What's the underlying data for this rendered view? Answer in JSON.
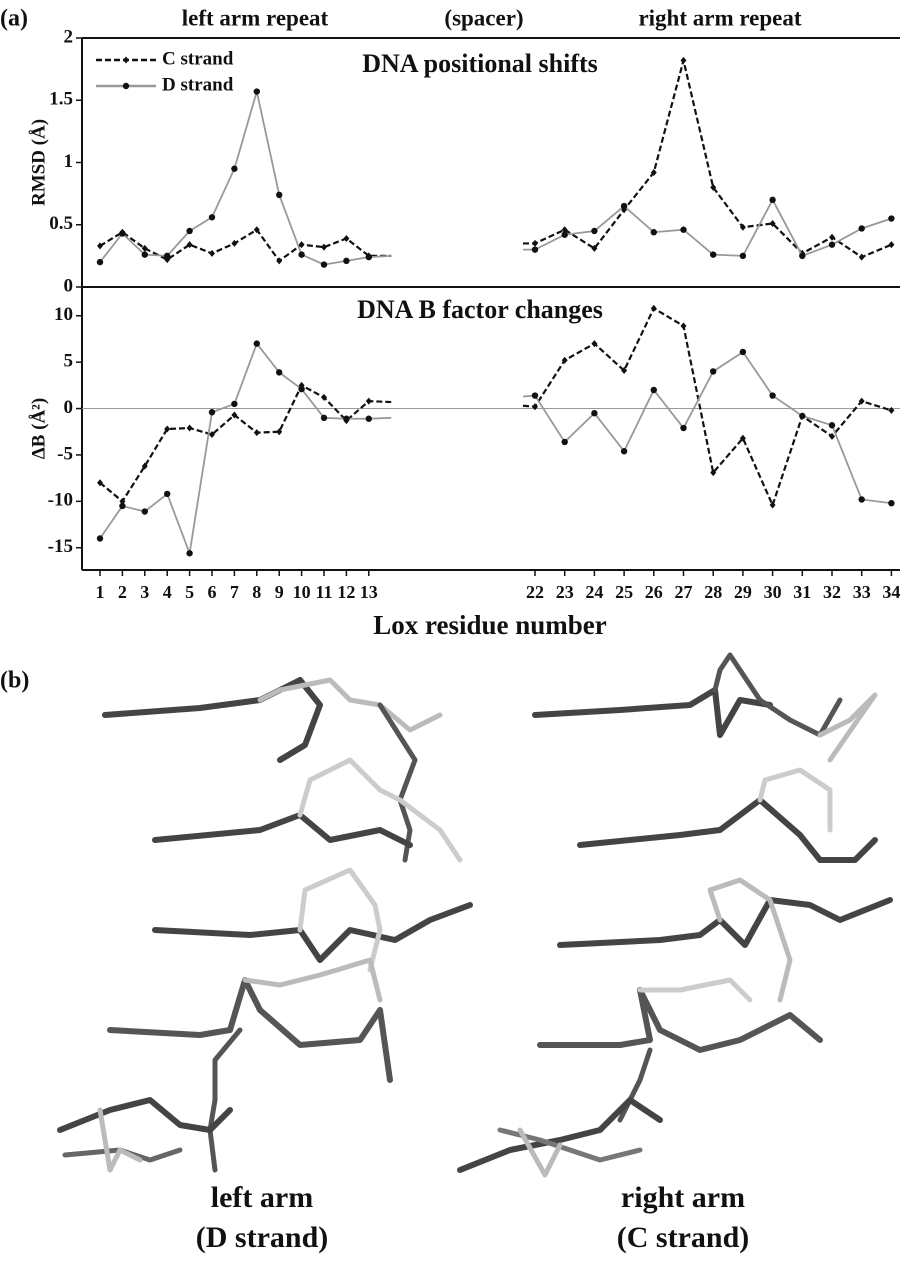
{
  "panel_a": {
    "label": "(a)",
    "region_labels": [
      "left arm repeat",
      "(spacer)",
      "right arm repeat"
    ]
  },
  "chart_data": [
    {
      "type": "line",
      "title": "DNA positional shifts",
      "y_label": "RMSD (Å)",
      "legend": "upper left",
      "ylim": [
        0,
        2
      ],
      "yticks": [
        0,
        0.5,
        1,
        1.5,
        2
      ],
      "series": [
        {
          "name": "C strand",
          "color": "#111111",
          "dash": true,
          "marker": "diamond",
          "values": [
            0.33,
            0.44,
            0.31,
            0.22,
            0.34,
            0.27,
            0.35,
            0.46,
            0.21,
            0.34,
            0.32,
            0.39,
            0.25,
            0.25,
            0.35,
            0.35,
            0.46,
            0.31,
            0.62,
            0.92,
            1.82,
            0.8,
            0.48,
            0.51,
            0.27,
            0.4,
            0.24,
            0.34
          ]
        },
        {
          "name": "D strand",
          "color": "#999999",
          "dash": false,
          "marker": "circle",
          "values": [
            0.2,
            0.43,
            0.26,
            0.25,
            0.45,
            0.56,
            0.95,
            1.57,
            0.74,
            0.26,
            0.18,
            0.21,
            0.24,
            0.25,
            0.3,
            0.3,
            0.42,
            0.45,
            0.65,
            0.44,
            0.46,
            0.26,
            0.25,
            0.7,
            0.25,
            0.34,
            0.47,
            0.55
          ]
        }
      ]
    },
    {
      "type": "line",
      "title": "DNA B factor changes",
      "y_label": "ΔB (Å²)",
      "x_label": "Lox residue number",
      "zero_line": true,
      "categories": [
        "1",
        "2",
        "3",
        "4",
        "5",
        "6",
        "7",
        "8",
        "9",
        "10",
        "11",
        "12",
        "13",
        null,
        null,
        "22",
        "23",
        "24",
        "25",
        "26",
        "27",
        "28",
        "29",
        "30",
        "31",
        "32",
        "33",
        "34"
      ],
      "ylim": [
        -17.4,
        13.1
      ],
      "yticks": [
        -15,
        -10,
        -5,
        0,
        5,
        10
      ],
      "series": [
        {
          "name": "C strand",
          "color": "#111111",
          "dash": true,
          "marker": "diamond",
          "values": [
            -8,
            -10,
            -6.2,
            -2.2,
            -2.1,
            -2.8,
            -0.7,
            -2.6,
            -2.5,
            2.5,
            1.2,
            -1.3,
            0.8,
            0.7,
            0.3,
            0.2,
            5.2,
            7,
            4.1,
            10.8,
            8.9,
            -6.9,
            -3.2,
            -10.4,
            -0.8,
            -3,
            0.8,
            -0.2
          ]
        },
        {
          "name": "D strand",
          "color": "#999999",
          "dash": false,
          "marker": "circle",
          "values": [
            -14,
            -10.5,
            -11.1,
            -9.2,
            -15.6,
            -0.4,
            0.5,
            7,
            3.9,
            2.1,
            -1,
            -1.1,
            -1.1,
            -1,
            1.3,
            1.4,
            -3.6,
            -0.5,
            -4.6,
            2,
            -2.1,
            4,
            6.1,
            1.4,
            -0.8,
            -1.8,
            -9.8,
            -10.2
          ]
        }
      ]
    }
  ],
  "panel_b": {
    "label": "(b)",
    "captions": [
      [
        "left arm",
        "(D strand)"
      ],
      [
        "right arm",
        "(C strand)"
      ]
    ]
  }
}
